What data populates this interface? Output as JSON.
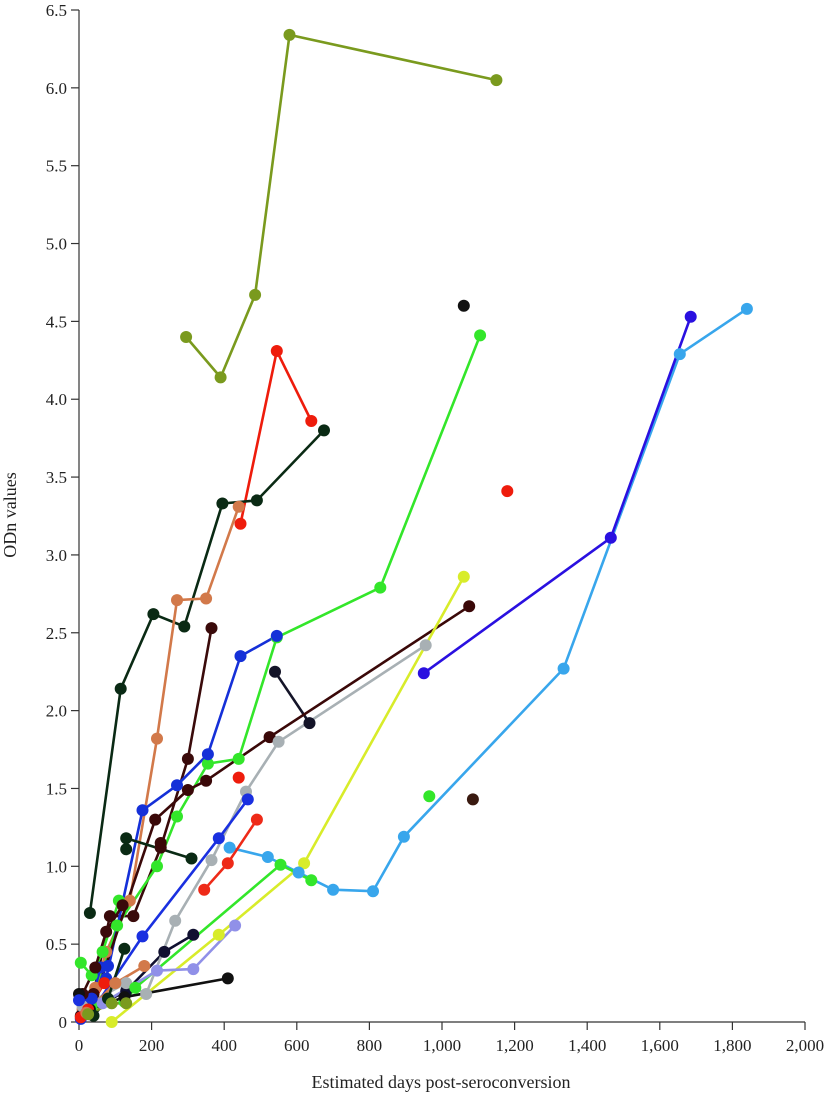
{
  "chart_data": {
    "type": "line",
    "title": "",
    "xlabel": "Estimated days post-seroconversion",
    "ylabel": "ODn values",
    "xlim": [
      0,
      2000
    ],
    "ylim": [
      0,
      6.5
    ],
    "x_ticks": [
      0,
      200,
      400,
      600,
      800,
      1000,
      1200,
      1400,
      1600,
      1800,
      2000
    ],
    "x_tick_labels": [
      "0",
      "200",
      "400",
      "600",
      "800",
      "1,000",
      "1,200",
      "1,400",
      "1,600",
      "1,800",
      "2,000"
    ],
    "y_ticks": [
      0,
      0.5,
      1.0,
      1.5,
      2.0,
      2.5,
      3.0,
      3.5,
      4.0,
      4.5,
      5.0,
      5.5,
      6.0,
      6.5
    ],
    "y_tick_labels": [
      "0",
      "0.5",
      "1.0",
      "1.5",
      "2.0",
      "2.5",
      "3.0",
      "3.5",
      "4.0",
      "4.5",
      "5.0",
      "5.5",
      "6.0",
      "6.5"
    ],
    "grid": false,
    "legend": "none",
    "series": [
      {
        "color": "#7a9a1e",
        "points": [
          [
            295,
            4.4
          ],
          [
            390,
            4.14
          ],
          [
            485,
            4.67
          ],
          [
            580,
            6.34
          ],
          [
            1150,
            6.05
          ]
        ]
      },
      {
        "color": "#ee1c0c",
        "points": [
          [
            445,
            3.2
          ],
          [
            545,
            4.31
          ],
          [
            640,
            3.86
          ]
        ]
      },
      {
        "color": "#0a2a14",
        "points": [
          [
            30,
            0.7
          ],
          [
            115,
            2.14
          ],
          [
            205,
            2.62
          ],
          [
            290,
            2.54
          ],
          [
            395,
            3.33
          ],
          [
            490,
            3.35
          ],
          [
            675,
            3.8
          ]
        ]
      },
      {
        "color": "#d2794a",
        "points": [
          [
            10,
            0.08
          ],
          [
            45,
            0.22
          ],
          [
            75,
            0.45
          ],
          [
            140,
            0.78
          ],
          [
            215,
            1.82
          ],
          [
            270,
            2.71
          ],
          [
            350,
            2.72
          ],
          [
            440,
            3.31
          ]
        ]
      },
      {
        "color": "#3a0a0a",
        "points": [
          [
            5,
            0.04
          ],
          [
            40,
            0.18
          ],
          [
            85,
            0.68
          ],
          [
            150,
            0.68
          ],
          [
            225,
            1.12
          ],
          [
            300,
            1.69
          ],
          [
            365,
            2.53
          ]
        ]
      },
      {
        "color": "#33e62a",
        "points": [
          [
            35,
            0.1
          ],
          [
            105,
            0.62
          ],
          [
            215,
            1.0
          ],
          [
            270,
            1.32
          ],
          [
            355,
            1.66
          ],
          [
            440,
            1.69
          ],
          [
            545,
            2.47
          ],
          [
            830,
            2.79
          ],
          [
            1105,
            4.41
          ]
        ]
      },
      {
        "color": "#1530d8",
        "points": [
          [
            15,
            0.12
          ],
          [
            75,
            0.28
          ],
          [
            175,
            1.36
          ],
          [
            270,
            1.52
          ],
          [
            355,
            1.72
          ],
          [
            445,
            2.35
          ],
          [
            545,
            2.48
          ]
        ]
      },
      {
        "color": "#101030",
        "points": [
          [
            10,
            0.05
          ],
          [
            130,
            0.2
          ],
          [
            235,
            0.45
          ],
          [
            315,
            0.56
          ]
        ]
      },
      {
        "color": "#141428",
        "points": [
          [
            540,
            2.25
          ],
          [
            635,
            1.92
          ]
        ]
      },
      {
        "color": "#3a0808",
        "points": [
          [
            30,
            0.06
          ],
          [
            210,
            1.3
          ],
          [
            300,
            1.49
          ],
          [
            350,
            1.55
          ],
          [
            525,
            1.83
          ],
          [
            1075,
            2.67
          ]
        ]
      },
      {
        "color": "#a8b0b4",
        "points": [
          [
            10,
            0.1
          ],
          [
            130,
            0.25
          ],
          [
            185,
            0.18
          ],
          [
            265,
            0.65
          ],
          [
            365,
            1.04
          ],
          [
            460,
            1.48
          ],
          [
            550,
            1.8
          ],
          [
            955,
            2.42
          ]
        ]
      },
      {
        "color": "#d8ec2a",
        "points": [
          [
            90,
            0.0
          ],
          [
            385,
            0.56
          ],
          [
            620,
            1.02
          ],
          [
            1060,
            2.86
          ]
        ]
      },
      {
        "color": "#38a6ec",
        "points": [
          [
            415,
            1.12
          ],
          [
            520,
            1.06
          ],
          [
            605,
            0.96
          ],
          [
            700,
            0.85
          ],
          [
            810,
            0.84
          ],
          [
            895,
            1.19
          ],
          [
            1335,
            2.27
          ],
          [
            1655,
            4.29
          ],
          [
            1840,
            4.58
          ]
        ]
      },
      {
        "color": "#2a10e0",
        "points": [
          [
            950,
            2.24
          ],
          [
            1465,
            3.11
          ],
          [
            1685,
            4.53
          ]
        ]
      },
      {
        "color": "#1a30e0",
        "points": [
          [
            30,
            0.05
          ],
          [
            175,
            0.55
          ],
          [
            385,
            1.18
          ],
          [
            465,
            1.43
          ]
        ]
      },
      {
        "color": "#ee2a18",
        "points": [
          [
            345,
            0.85
          ],
          [
            410,
            1.02
          ],
          [
            490,
            1.3
          ]
        ]
      },
      {
        "color": "#33e62a",
        "points": [
          [
            125,
            0.13
          ],
          [
            155,
            0.22
          ],
          [
            555,
            1.01
          ],
          [
            640,
            0.91
          ]
        ]
      },
      {
        "color": "#9090e8",
        "points": [
          [
            65,
            0.12
          ],
          [
            215,
            0.33
          ],
          [
            315,
            0.34
          ],
          [
            430,
            0.62
          ]
        ]
      },
      {
        "color": "#111111",
        "points": [
          [
            30,
            0.08
          ],
          [
            125,
            0.16
          ],
          [
            410,
            0.28
          ]
        ]
      },
      {
        "color": "#0a2a14",
        "points": [
          [
            130,
            1.18
          ],
          [
            310,
            1.05
          ]
        ]
      },
      {
        "color": "#33e62a",
        "points": [
          [
            5,
            0.38
          ],
          [
            35,
            0.3
          ],
          [
            65,
            0.45
          ],
          [
            110,
            0.78
          ]
        ]
      },
      {
        "color": "#1530d8",
        "points": [
          [
            5,
            0.02
          ],
          [
            35,
            0.15
          ],
          [
            60,
            0.35
          ],
          [
            80,
            0.36
          ]
        ]
      },
      {
        "color": "#ee1c0c",
        "points": [
          [
            5,
            0.03
          ],
          [
            25,
            0.08
          ],
          [
            70,
            0.25
          ]
        ]
      },
      {
        "color": "#d2794a",
        "points": [
          [
            20,
            0.06
          ],
          [
            100,
            0.25
          ],
          [
            180,
            0.36
          ]
        ]
      },
      {
        "color": "#0a2a14",
        "points": [
          [
            40,
            0.04
          ],
          [
            80,
            0.15
          ],
          [
            125,
            0.47
          ]
        ]
      },
      {
        "color": "#3a0a0a",
        "points": [
          [
            10,
            0.18
          ],
          [
            45,
            0.35
          ],
          [
            75,
            0.58
          ],
          [
            120,
            0.75
          ]
        ]
      },
      {
        "color": "#7a9a1e",
        "points": [
          [
            25,
            0.05
          ],
          [
            90,
            0.12
          ],
          [
            130,
            0.12
          ]
        ]
      }
    ],
    "isolated_points": [
      {
        "color": "#111111",
        "x": 1060,
        "y": 4.6
      },
      {
        "color": "#ee1c0c",
        "x": 1180,
        "y": 3.41
      },
      {
        "color": "#33e62a",
        "x": 965,
        "y": 1.45
      },
      {
        "color": "#3a1a10",
        "x": 1085,
        "y": 1.43
      },
      {
        "color": "#ee1c0c",
        "x": 440,
        "y": 1.57
      },
      {
        "color": "#111111",
        "x": 0,
        "y": 0.18
      },
      {
        "color": "#1a30e0",
        "x": 0,
        "y": 0.14
      },
      {
        "color": "#0a2a14",
        "x": 130,
        "y": 1.11
      },
      {
        "color": "#3a0808",
        "x": 225,
        "y": 1.15
      }
    ]
  }
}
